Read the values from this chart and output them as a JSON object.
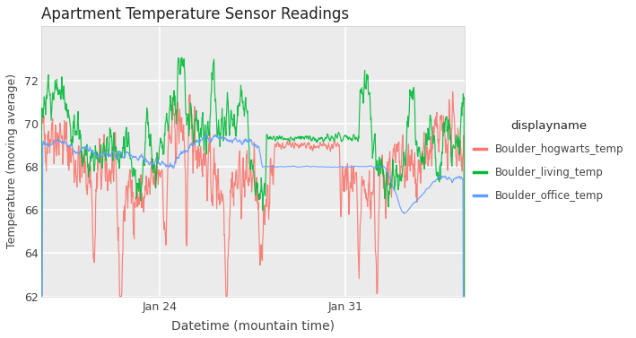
{
  "title": "Apartment Temperature Sensor Readings",
  "xlabel": "Datetime (mountain time)",
  "ylabel": "Temperature (moving average)",
  "xlim_days": [
    19.5,
    35.5
  ],
  "ylim": [
    62,
    74.5
  ],
  "yticks": [
    62,
    64,
    66,
    68,
    70,
    72
  ],
  "xtick_labels": [
    "Jan 24",
    "Jan 31"
  ],
  "xtick_positions": [
    24.0,
    31.0
  ],
  "background_color": "#ffffff",
  "panel_color": "#ebebeb",
  "grid_color": "#ffffff",
  "colors": {
    "hogwarts": "#F8766D",
    "living": "#00BA38",
    "office": "#619CFF"
  },
  "legend_title": "displayname",
  "legend_labels": [
    "Boulder_hogwarts_temp",
    "Boulder_living_temp",
    "Boulder_office_temp"
  ],
  "seed": 42
}
